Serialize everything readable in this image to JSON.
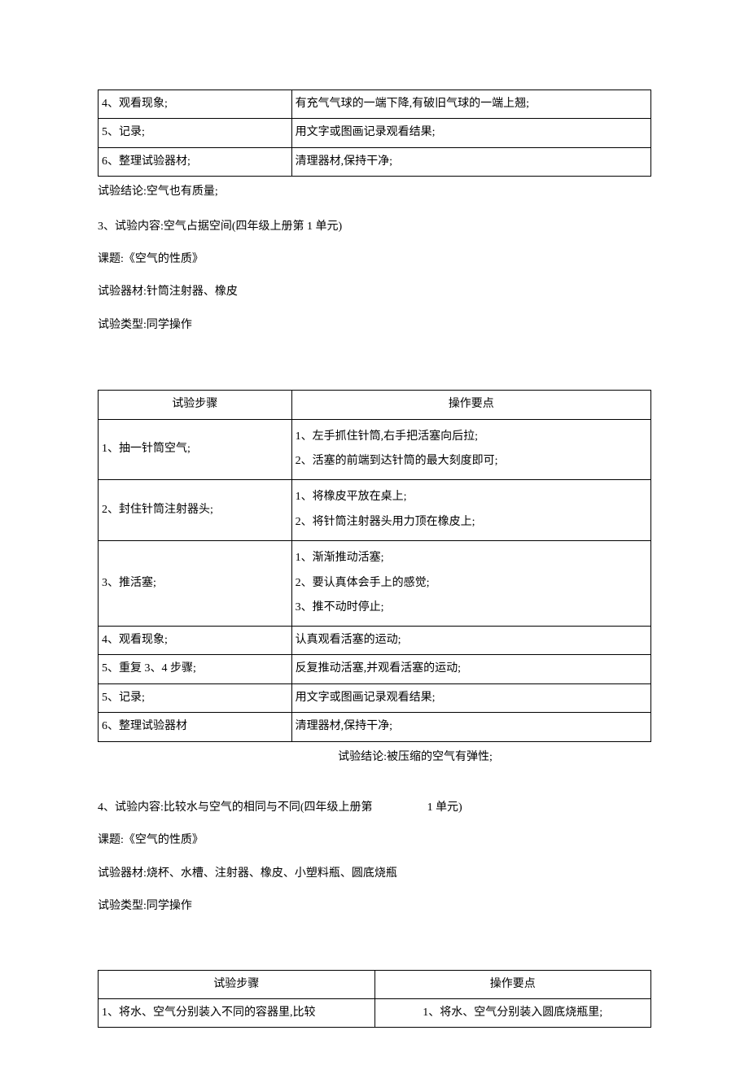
{
  "table1": {
    "rows": [
      {
        "step": "4、观看现象;",
        "point": "有充气气球的一端下降,有破旧气球的一端上翘;"
      },
      {
        "step": "5、记录;",
        "point": "用文字或图画记录观看结果;"
      },
      {
        "step": "6、整理试验器材;",
        "point": "清理器材,保持干净;"
      }
    ]
  },
  "conclusion1": "试验结论:空气也有质量;",
  "section3": {
    "title": "3、试验内容:空气占据空间(四年级上册第 1 单元)",
    "topic": "课题:《空气的性质》",
    "materials": "试验器材:针筒注射器、橡皮",
    "type": "试验类型:同学操作"
  },
  "table2": {
    "header_step": "试验步骤",
    "header_point": "操作要点",
    "rows": [
      {
        "step": "1、抽一针筒空气;",
        "point": "1、左手抓住针筒,右手把活塞向后拉;\n2、活塞的前端到达针筒的最大刻度即可;"
      },
      {
        "step": "2、封住针筒注射器头;",
        "point": "1、将橡皮平放在桌上;\n2、将针筒注射器头用力顶在橡皮上;"
      },
      {
        "step": "3、推活塞;",
        "point": "1、渐渐推动活塞;\n2、要认真体会手上的感觉;\n3、推不动时停止;"
      },
      {
        "step": "4、观看现象;",
        "point": "认真观看活塞的运动;"
      },
      {
        "step": "5、重复 3、4 步骤;",
        "point": "反复推动活塞,并观看活塞的运动;"
      },
      {
        "step": "5、记录;",
        "point": "用文字或图画记录观看结果;"
      },
      {
        "step": "6、整理试验器材",
        "point": "清理器材,保持干净;"
      }
    ]
  },
  "conclusion2": "试验结论:被压缩的空气有弹性;",
  "section4": {
    "title_a": "4、试验内容:比较水与空气的相同与不同(四年级上册第",
    "title_b": "1 单元)",
    "topic": "课题:《空气的性质》",
    "materials": "试验器材:烧杯、水槽、注射器、橡皮、小塑料瓶、圆底烧瓶",
    "type": "试验类型:同学操作"
  },
  "table3": {
    "header_step": "试验步骤",
    "header_point": "操作要点",
    "rows": [
      {
        "step": "1、将水、空气分别装入不同的容器里,比较",
        "point": "1、将水、空气分别装入圆底烧瓶里;"
      }
    ]
  }
}
